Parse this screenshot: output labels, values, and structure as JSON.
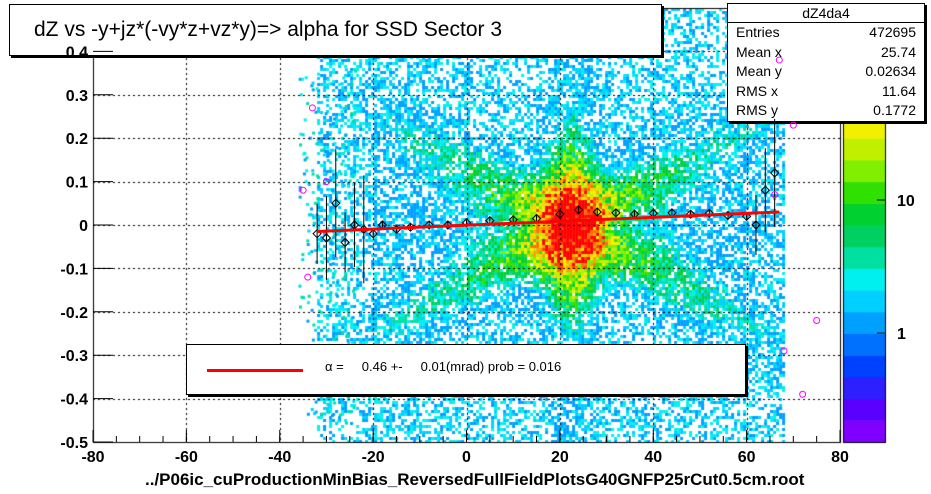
{
  "title": "dZ vs -y+jz*(-vy*z+vz*y)=> alpha for SSD Sector 3",
  "stats": {
    "name": "dZ4da4",
    "rows": [
      {
        "label": "Entries",
        "value": "472695"
      },
      {
        "label": "Mean x",
        "value": "25.74"
      },
      {
        "label": "Mean y",
        "value": "0.02634"
      },
      {
        "label": "RMS x",
        "value": "11.64"
      },
      {
        "label": "RMS y",
        "value": "0.1772"
      }
    ]
  },
  "fit": {
    "text": "α =     0.46 +-     0.01(mrad) prob = 0.016",
    "color": "#ff0000"
  },
  "footer": "../P06ic_cuProductionMinBias_ReversedFullFieldPlotsG40GNFP25rCut0.5cm.root",
  "colorbar": {
    "labels": [
      "10",
      "1"
    ],
    "palette": [
      "#7f00ff",
      "#5a00ff",
      "#2d1fff",
      "#0040ff",
      "#0070ff",
      "#00a0ff",
      "#00d0ff",
      "#00f0f0",
      "#00e0a0",
      "#00d060",
      "#00d030",
      "#30e000",
      "#80f000",
      "#c0f000",
      "#f0f000",
      "#ffd000",
      "#ffa000",
      "#ff7000",
      "#ff4000",
      "#ff0000"
    ]
  },
  "chart_data": {
    "type": "heatmap",
    "title": "dZ vs -y+jz*(-vy*z+vz*y)=> alpha for SSD Sector 3",
    "xlim": [
      -80,
      80
    ],
    "ylim": [
      -0.5,
      0.5
    ],
    "x_ticks": [
      -80,
      -60,
      -40,
      -20,
      0,
      20,
      40,
      60,
      80
    ],
    "y_ticks": [
      -0.5,
      -0.4,
      -0.3,
      -0.2,
      -0.1,
      0,
      0.1,
      0.2,
      0.3,
      0.4
    ],
    "grid": true,
    "density_center": {
      "x": 22,
      "y": 0.0
    },
    "profile_points": [
      {
        "x": -32,
        "y": -0.02
      },
      {
        "x": -30,
        "y": -0.03
      },
      {
        "x": -28,
        "y": 0.05
      },
      {
        "x": -26,
        "y": -0.04
      },
      {
        "x": -24,
        "y": 0.0
      },
      {
        "x": -22,
        "y": -0.01
      },
      {
        "x": -20,
        "y": -0.02
      },
      {
        "x": -18,
        "y": 0.0
      },
      {
        "x": -15,
        "y": -0.01
      },
      {
        "x": -12,
        "y": -0.005
      },
      {
        "x": -8,
        "y": 0.0
      },
      {
        "x": -4,
        "y": 0.0
      },
      {
        "x": 0,
        "y": 0.005
      },
      {
        "x": 5,
        "y": 0.01
      },
      {
        "x": 10,
        "y": 0.012
      },
      {
        "x": 15,
        "y": 0.015
      },
      {
        "x": 20,
        "y": 0.025
      },
      {
        "x": 24,
        "y": 0.035
      },
      {
        "x": 28,
        "y": 0.03
      },
      {
        "x": 32,
        "y": 0.028
      },
      {
        "x": 36,
        "y": 0.025
      },
      {
        "x": 40,
        "y": 0.027
      },
      {
        "x": 44,
        "y": 0.028
      },
      {
        "x": 48,
        "y": 0.025
      },
      {
        "x": 52,
        "y": 0.027
      },
      {
        "x": 56,
        "y": 0.022
      },
      {
        "x": 60,
        "y": 0.02
      },
      {
        "x": 62,
        "y": 0.0
      },
      {
        "x": 64,
        "y": 0.08
      },
      {
        "x": 66,
        "y": 0.12
      }
    ],
    "fit_line": {
      "x": [
        -32,
        67
      ],
      "y": [
        -0.015,
        0.03
      ]
    },
    "fit_label": "α =     0.46 +-     0.01(mrad) prob = 0.016"
  }
}
